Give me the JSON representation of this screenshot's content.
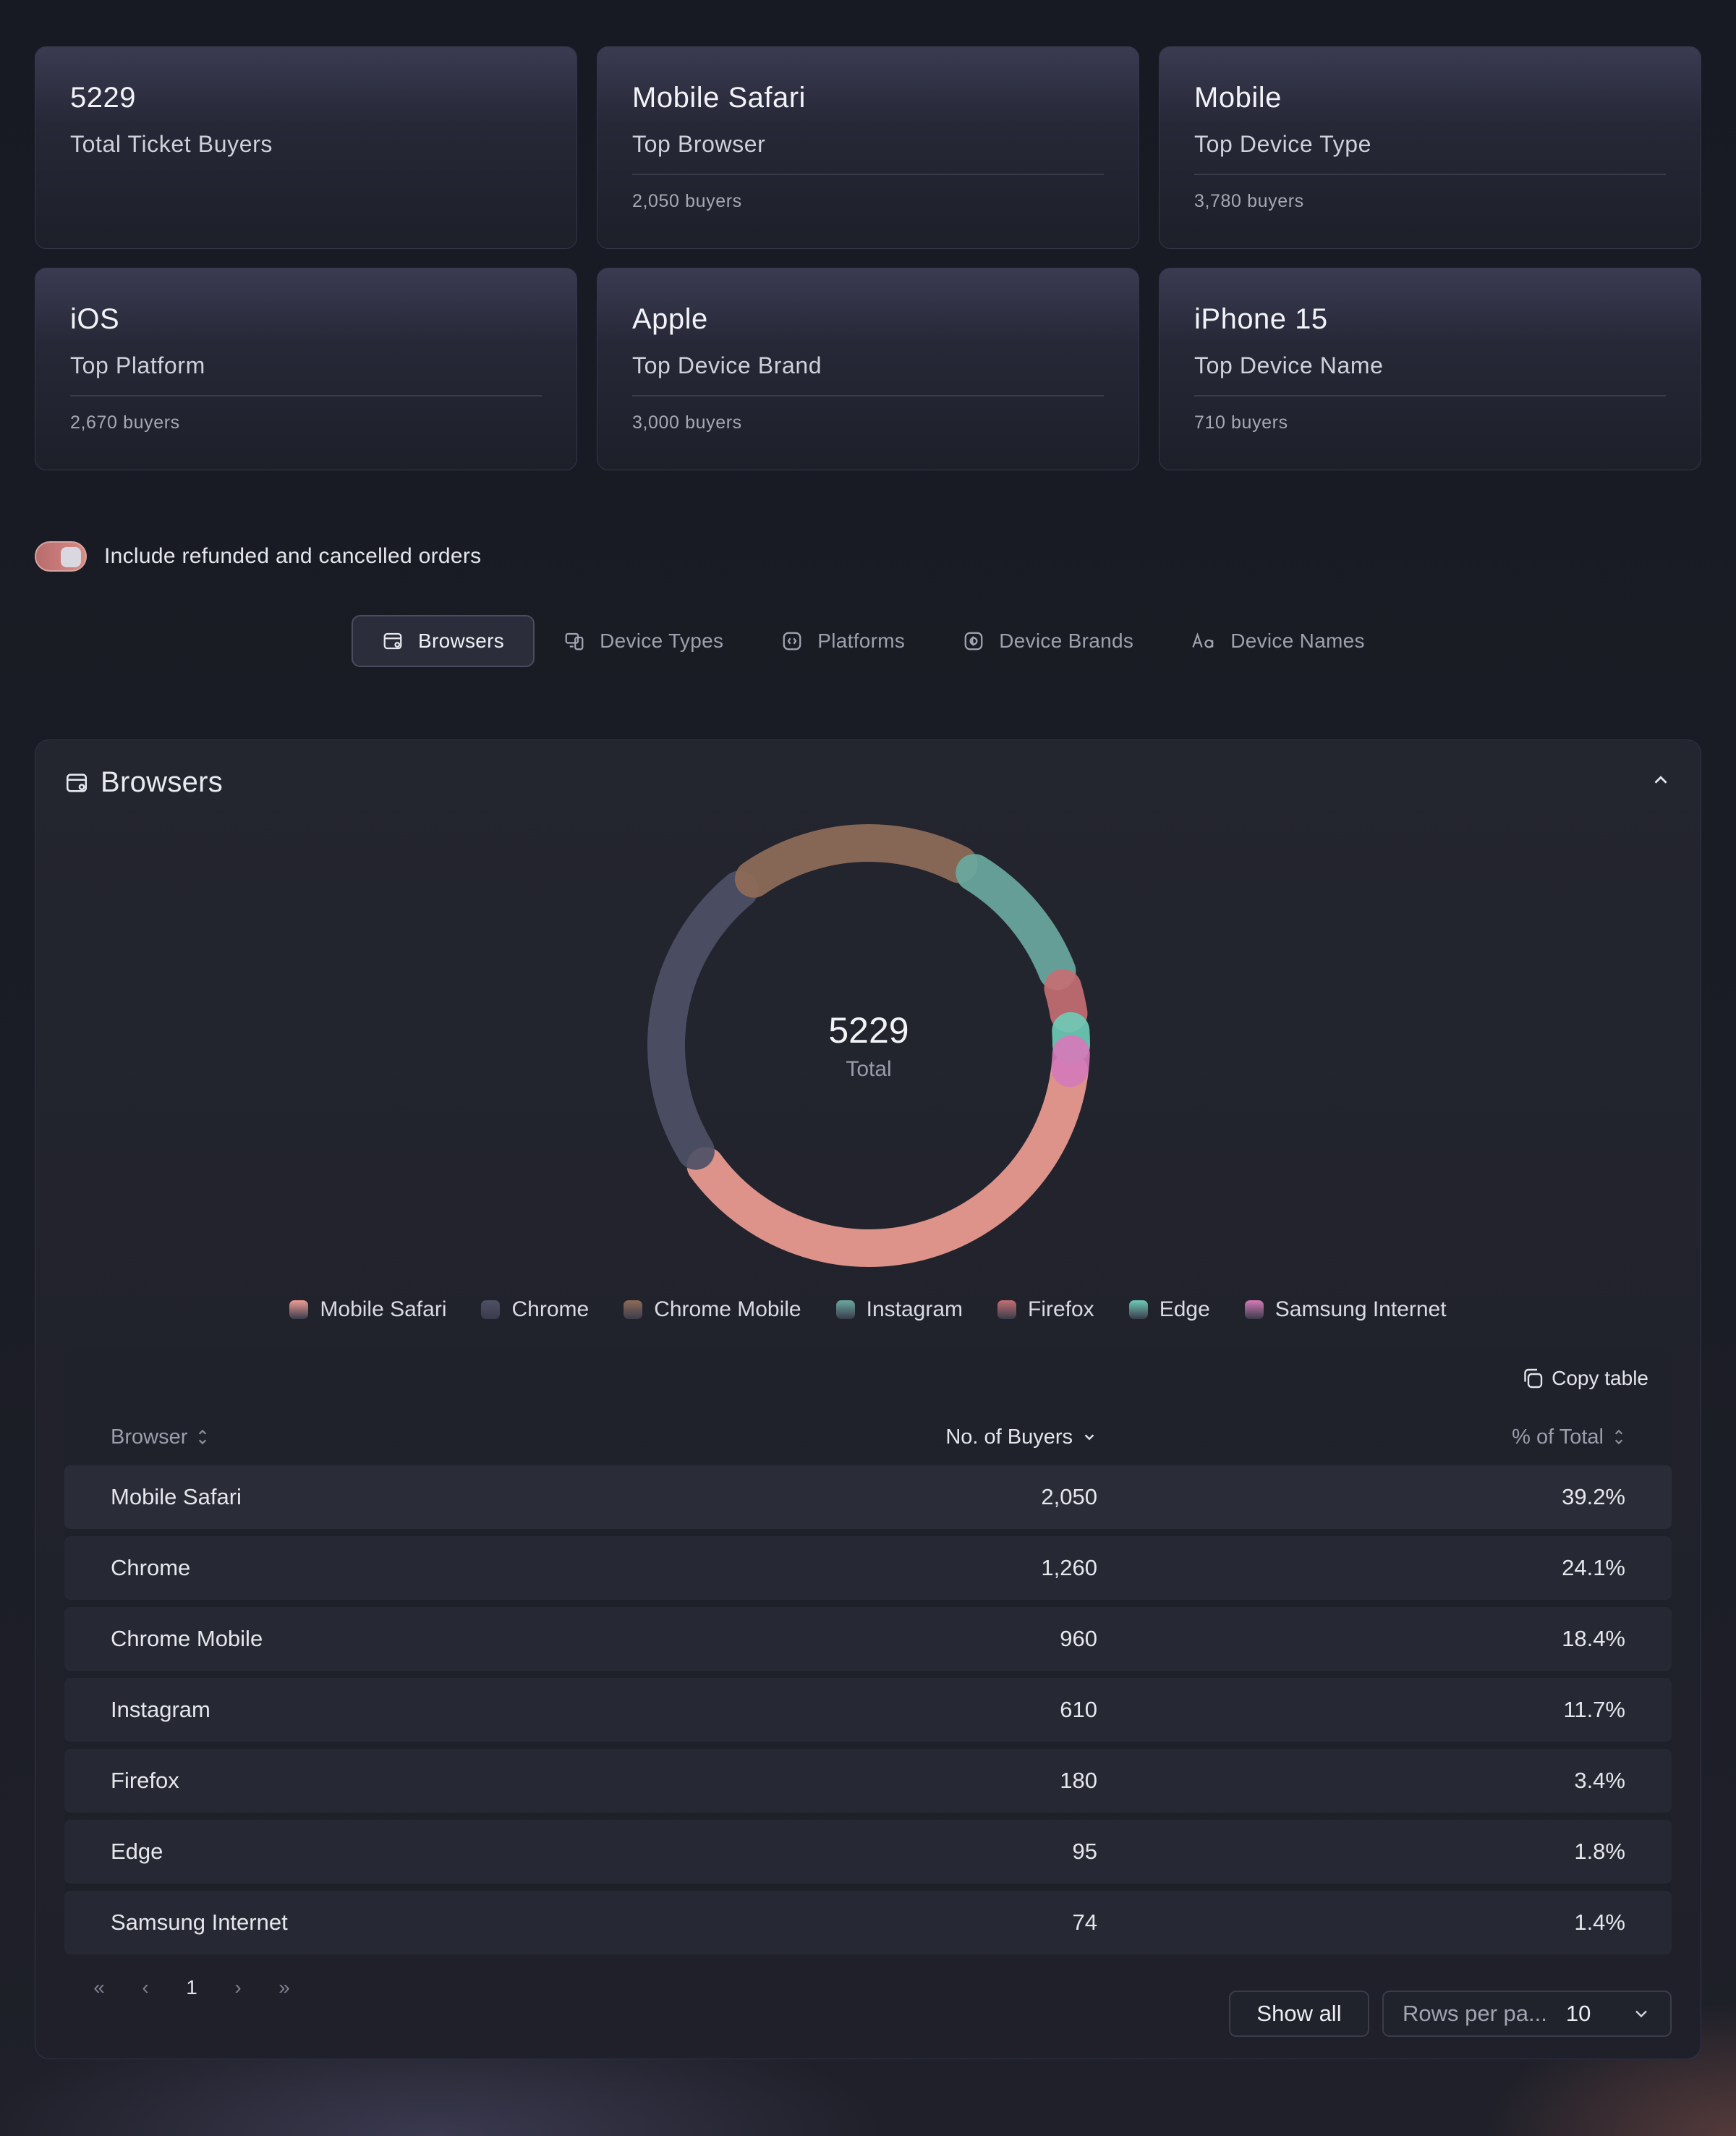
{
  "stats": [
    {
      "value": "5229",
      "label": "Total Ticket Buyers",
      "sub": ""
    },
    {
      "value": "Mobile Safari",
      "label": "Top Browser",
      "sub": "2,050 buyers"
    },
    {
      "value": "Mobile",
      "label": "Top Device Type",
      "sub": "3,780 buyers"
    },
    {
      "value": "iOS",
      "label": "Top Platform",
      "sub": "2,670 buyers"
    },
    {
      "value": "Apple",
      "label": "Top Device Brand",
      "sub": "3,000 buyers"
    },
    {
      "value": "iPhone 15",
      "label": "Top Device Name",
      "sub": "710 buyers"
    }
  ],
  "toggle": {
    "label": "Include refunded and cancelled orders",
    "on": true
  },
  "tabs": [
    {
      "label": "Browsers",
      "icon": "browser-icon",
      "active": true
    },
    {
      "label": "Device Types",
      "icon": "devices-icon",
      "active": false
    },
    {
      "label": "Platforms",
      "icon": "code-icon",
      "active": false
    },
    {
      "label": "Device Brands",
      "icon": "brand-icon",
      "active": false
    },
    {
      "label": "Device Names",
      "icon": "text-icon",
      "active": false
    }
  ],
  "panel": {
    "title": "Browsers",
    "total": "5229",
    "total_label": "Total",
    "copy_label": "Copy table",
    "columns": {
      "name": "Browser",
      "buyers": "No. of Buyers",
      "pct": "% of Total"
    },
    "pager": {
      "first": "«",
      "prev": "‹",
      "page": "1",
      "next": "›",
      "last": "»"
    },
    "show_all": "Show all",
    "rows_per_page_label": "Rows per pa...",
    "rows_per_page": "10"
  },
  "chart_data": {
    "type": "pie",
    "categories": [
      "Mobile Safari",
      "Chrome",
      "Chrome Mobile",
      "Instagram",
      "Firefox",
      "Edge",
      "Samsung Internet"
    ],
    "values": [
      2050,
      1260,
      960,
      610,
      180,
      95,
      74
    ],
    "total": 5229,
    "colors": [
      "#ee9d92",
      "#4e5066",
      "#8f6b58",
      "#6aa99f",
      "#c46f72",
      "#6ecbb6",
      "#d57ab8"
    ]
  },
  "table": [
    {
      "name": "Mobile Safari",
      "buyers": "2,050",
      "pct": "39.2%"
    },
    {
      "name": "Chrome",
      "buyers": "1,260",
      "pct": "24.1%"
    },
    {
      "name": "Chrome Mobile",
      "buyers": "960",
      "pct": "18.4%"
    },
    {
      "name": "Instagram",
      "buyers": "610",
      "pct": "11.7%"
    },
    {
      "name": "Firefox",
      "buyers": "180",
      "pct": "3.4%"
    },
    {
      "name": "Edge",
      "buyers": "95",
      "pct": "1.8%"
    },
    {
      "name": "Samsung Internet",
      "buyers": "74",
      "pct": "1.4%"
    }
  ]
}
